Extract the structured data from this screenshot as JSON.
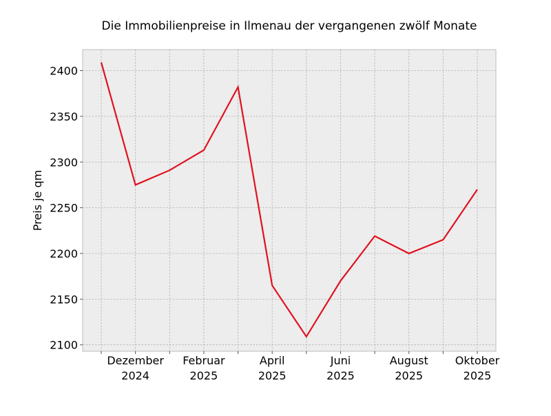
{
  "chart_data": {
    "type": "line",
    "title": "Die Immobilienpreise in Ilmenau der vergangenen zwölf Monate",
    "ylabel": "Preis je qm",
    "categories": [
      null,
      "Dezember 2024",
      null,
      "Februar 2025",
      null,
      "April 2025",
      null,
      "Juni 2025",
      null,
      "August 2025",
      null,
      "Oktober 2025"
    ],
    "series": [
      {
        "name": "Preis je qm",
        "color": "#e0111e",
        "values": [
          2409,
          2275,
          2291,
          2313,
          2382,
          2165,
          2109,
          2170,
          2219,
          2200,
          2215,
          2270
        ]
      }
    ],
    "ylim": [
      2093,
      2423
    ],
    "yticks": [
      2100,
      2150,
      2200,
      2250,
      2300,
      2350,
      2400
    ],
    "grid": true
  }
}
